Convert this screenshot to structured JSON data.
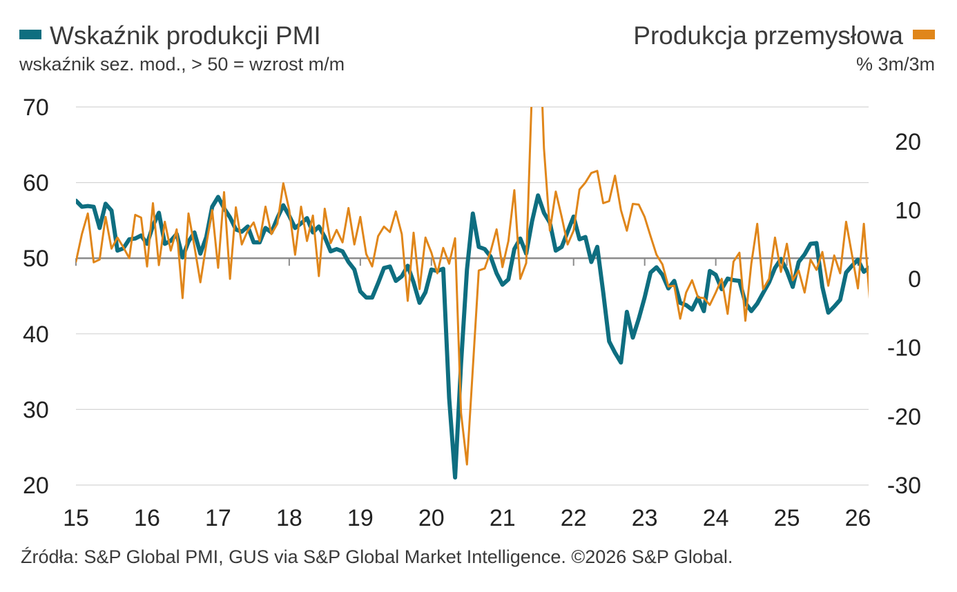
{
  "legend": {
    "left_title": "Wskaźnik produkcji PMI",
    "left_subtitle": "wskaźnik sez. mod., > 50 = wzrost m/m",
    "right_title": "Produkcja przemysłowa",
    "right_subtitle": "% 3m/3m"
  },
  "source": "Źródła: S&P Global PMI, GUS via S&P Global Market Intelligence. ©2026 S&P Global.",
  "colors": {
    "pmi": "#0e6e80",
    "production": "#e0861a",
    "grid": "#d4d4d4",
    "zero_line": "#8c8c8c",
    "text": "#222222"
  },
  "chart_data": {
    "type": "line",
    "x_axis": {
      "tick_labels": [
        "15",
        "16",
        "17",
        "18",
        "19",
        "20",
        "21",
        "22",
        "23",
        "24",
        "25",
        "26"
      ],
      "range": [
        2015.0,
        2026.15
      ]
    },
    "y_left": {
      "ticks": [
        20,
        30,
        40,
        50,
        60,
        70
      ],
      "range": [
        20,
        70
      ],
      "reference_line": 50
    },
    "y_right": {
      "ticks": [
        -30,
        -20,
        -10,
        0,
        10,
        20
      ],
      "range": [
        -30,
        25
      ]
    },
    "grid": true,
    "series": [
      {
        "name": "Wskaźnik produkcji PMI",
        "axis": "left",
        "color": "#0e6e80",
        "start": 2015.0,
        "step": 0.08333,
        "values": [
          57.6,
          56.8,
          56.9,
          56.8,
          54.0,
          57.2,
          56.3,
          51.0,
          51.3,
          52.5,
          52.6,
          53.0,
          51.9,
          54.3,
          56.0,
          51.9,
          52.3,
          53.2,
          50.1,
          52.2,
          53.4,
          50.6,
          52.8,
          56.8,
          58.1,
          56.6,
          55.4,
          53.8,
          53.5,
          54.2,
          52.1,
          52.1,
          54.0,
          53.4,
          55.3,
          57.0,
          55.6,
          54.0,
          54.6,
          55.3,
          53.4,
          54.2,
          52.8,
          50.9,
          51.2,
          50.9,
          49.5,
          48.5,
          45.6,
          44.8,
          44.8,
          46.7,
          48.7,
          48.9,
          47.0,
          47.6,
          49.0,
          46.8,
          44.1,
          45.5,
          48.5,
          48.3,
          48.6,
          31.5,
          21.0,
          36.0,
          48.5,
          55.9,
          51.5,
          51.2,
          50.2,
          48.0,
          46.5,
          47.2,
          51.2,
          52.6,
          50.6,
          54.9,
          58.3,
          56.0,
          54.7,
          51.0,
          51.5,
          53.5,
          55.5,
          52.5,
          52.8,
          49.5,
          51.5,
          45.5,
          39.0,
          37.5,
          36.2,
          42.9,
          39.5,
          42.0,
          44.8,
          48.1,
          48.8,
          47.8,
          46.0,
          47.0,
          44.1,
          43.8,
          43.2,
          44.8,
          43.0,
          48.3,
          47.8,
          45.9,
          47.3,
          47.1,
          47.0,
          44.1,
          43.0,
          44.0,
          45.4,
          46.8,
          48.7,
          49.9,
          48.3,
          46.2,
          49.5,
          50.5,
          51.9,
          52.0,
          46.2,
          42.8,
          43.6,
          44.5,
          48.1,
          49.0,
          49.8,
          48.2,
          48.8,
          49.0,
          50.4
        ]
      },
      {
        "name": "Produkcja przemysłowa",
        "axis": "right",
        "color": "#e0861a",
        "start": 2015.0,
        "step": 0.08333,
        "values": [
          2.5,
          6.5,
          9.5,
          2.4,
          2.8,
          9.0,
          4.4,
          6.0,
          4.6,
          3.0,
          9.3,
          8.9,
          1.8,
          11.0,
          2.0,
          8.3,
          4.1,
          7.2,
          -2.8,
          9.5,
          4.7,
          -0.5,
          5.0,
          10.0,
          1.6,
          12.6,
          0.0,
          10.4,
          5.0,
          7.0,
          8.2,
          5.5,
          10.5,
          6.5,
          8.0,
          13.9,
          10.0,
          3.5,
          10.5,
          5.5,
          9.2,
          0.4,
          10.2,
          5.2,
          7.1,
          5.3,
          10.3,
          5.0,
          9.0,
          3.6,
          1.8,
          6.2,
          7.6,
          6.8,
          9.8,
          6.5,
          -3.2,
          6.7,
          -1.5,
          6.0,
          3.8,
          0.8,
          4.5,
          2.2,
          5.9,
          -19.5,
          -27.0,
          -13.0,
          1.2,
          1.5,
          4.0,
          7.2,
          1.7,
          5.5,
          12.9,
          0.0,
          2.3,
          28.0,
          42.5,
          19.0,
          7.0,
          12.7,
          9.0,
          5.0,
          7.0,
          13.0,
          14.0,
          15.4,
          15.7,
          11.0,
          11.3,
          15.0,
          10.0,
          7.0,
          10.9,
          10.8,
          9.0,
          6.2,
          3.5,
          2.1,
          -1.1,
          -1.0,
          -5.8,
          -2.0,
          -0.2,
          -2.7,
          -2.8,
          -3.8,
          -2.0,
          0.0,
          -5.1,
          2.5,
          3.8,
          -6.1,
          2.2,
          8.0,
          -1.5,
          0.0,
          6.0,
          1.0,
          5.1,
          -0.2,
          1.2,
          -2.0,
          2.8,
          1.3,
          3.9,
          -1.0,
          3.4,
          0.8,
          8.3,
          3.5,
          -1.4,
          8.0,
          -3.2,
          0.2
        ]
      }
    ]
  }
}
